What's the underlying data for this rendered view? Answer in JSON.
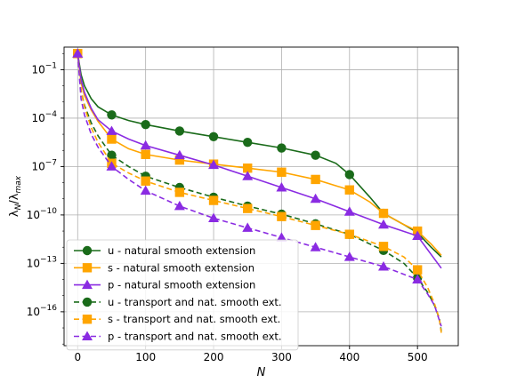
{
  "chart_data": {
    "type": "line",
    "xlabel": "N",
    "ylabel": "λN/λmax",
    "xlim": [
      -20,
      560
    ],
    "ylim_log10": [
      -18.1,
      0.4
    ],
    "yscale": "log",
    "grid": true,
    "legend_position": "lower-left",
    "x_ticks": [
      0,
      100,
      200,
      300,
      400,
      500
    ],
    "y_ticks": [
      {
        "exp": -1,
        "label": "10",
        "sup": "−1"
      },
      {
        "exp": -4,
        "label": "10",
        "sup": "−4"
      },
      {
        "exp": -7,
        "label": "10",
        "sup": "−7"
      },
      {
        "exp": -10,
        "label": "10",
        "sup": "−10"
      },
      {
        "exp": -13,
        "label": "10",
        "sup": "−13"
      },
      {
        "exp": -16,
        "label": "10",
        "sup": "−16"
      }
    ],
    "series": [
      {
        "name": "u - natural smooth extension",
        "color": "#1a6b1a",
        "marker": "circle",
        "dash": "solid",
        "x": [
          0,
          5,
          10,
          20,
          30,
          50,
          75,
          100,
          150,
          200,
          250,
          300,
          350,
          380,
          400,
          430,
          450,
          480,
          500,
          520,
          535
        ],
        "log10y": [
          0,
          -1.3,
          -2.0,
          -2.8,
          -3.3,
          -3.8,
          -4.15,
          -4.4,
          -4.8,
          -5.15,
          -5.5,
          -5.85,
          -6.3,
          -6.8,
          -7.5,
          -8.9,
          -9.9,
          -10.6,
          -11.1,
          -12.0,
          -12.6
        ],
        "marker_x": [
          0,
          50,
          100,
          150,
          200,
          250,
          300,
          350,
          400,
          450,
          500
        ]
      },
      {
        "name": "s - natural smooth extension",
        "color": "#ffa500",
        "marker": "square",
        "dash": "solid",
        "x": [
          0,
          5,
          10,
          20,
          30,
          50,
          75,
          100,
          150,
          200,
          250,
          300,
          350,
          400,
          430,
          450,
          480,
          500,
          520,
          535
        ],
        "log10y": [
          0,
          -1.8,
          -2.6,
          -3.5,
          -4.2,
          -5.3,
          -5.9,
          -6.25,
          -6.6,
          -6.85,
          -7.1,
          -7.35,
          -7.8,
          -8.45,
          -9.2,
          -9.9,
          -10.6,
          -11.0,
          -11.8,
          -12.5
        ],
        "marker_x": [
          0,
          50,
          100,
          150,
          200,
          250,
          300,
          350,
          400,
          450,
          500
        ]
      },
      {
        "name": "p - natural smooth extension",
        "color": "#8a2be2",
        "marker": "triangle",
        "dash": "solid",
        "x": [
          0,
          5,
          10,
          20,
          30,
          50,
          75,
          100,
          150,
          200,
          250,
          300,
          350,
          400,
          450,
          500,
          535
        ],
        "log10y": [
          0,
          -1.6,
          -2.4,
          -3.4,
          -4.1,
          -4.8,
          -5.3,
          -5.7,
          -6.3,
          -6.9,
          -7.6,
          -8.3,
          -9.0,
          -9.8,
          -10.6,
          -11.3,
          -13.3
        ],
        "marker_x": [
          0,
          50,
          100,
          150,
          200,
          250,
          300,
          350,
          400,
          450,
          500
        ]
      },
      {
        "name": "u - transport and nat. smooth ext.",
        "color": "#1a6b1a",
        "marker": "circle",
        "dash": "dashed",
        "x": [
          0,
          5,
          10,
          20,
          30,
          50,
          75,
          100,
          150,
          200,
          250,
          300,
          350,
          400,
          450,
          480,
          500,
          515,
          525,
          532,
          535
        ],
        "log10y": [
          0,
          -2.3,
          -3.2,
          -4.3,
          -5.1,
          -6.3,
          -7.0,
          -7.6,
          -8.3,
          -8.9,
          -9.45,
          -9.95,
          -10.55,
          -11.2,
          -12.2,
          -13.0,
          -13.9,
          -14.8,
          -15.6,
          -16.4,
          -17.2
        ],
        "marker_x": [
          0,
          50,
          100,
          150,
          200,
          250,
          300,
          350,
          400,
          450,
          500
        ]
      },
      {
        "name": "s - transport and nat. smooth ext.",
        "color": "#ffa500",
        "marker": "square",
        "dash": "dashed",
        "x": [
          0,
          5,
          10,
          20,
          30,
          50,
          75,
          100,
          150,
          200,
          250,
          300,
          350,
          400,
          450,
          480,
          500,
          515,
          525,
          532,
          535
        ],
        "log10y": [
          0,
          -2.3,
          -3.3,
          -4.6,
          -5.5,
          -6.8,
          -7.4,
          -7.9,
          -8.6,
          -9.1,
          -9.6,
          -10.1,
          -10.65,
          -11.2,
          -11.95,
          -12.6,
          -13.4,
          -14.5,
          -15.5,
          -16.4,
          -17.3
        ],
        "marker_x": [
          0,
          50,
          100,
          150,
          200,
          250,
          300,
          350,
          400,
          450,
          500
        ]
      },
      {
        "name": "p - transport and nat. smooth ext.",
        "color": "#8a2be2",
        "marker": "triangle",
        "dash": "dashed",
        "x": [
          0,
          5,
          10,
          20,
          30,
          50,
          75,
          100,
          150,
          200,
          250,
          300,
          350,
          400,
          450,
          500,
          515,
          525,
          535
        ],
        "log10y": [
          0,
          -2.8,
          -3.8,
          -5.0,
          -5.8,
          -7.0,
          -7.8,
          -8.5,
          -9.45,
          -10.2,
          -10.8,
          -11.4,
          -12.0,
          -12.6,
          -13.2,
          -14.0,
          -14.9,
          -15.6,
          -16.9
        ],
        "marker_x": [
          0,
          50,
          100,
          150,
          200,
          250,
          300,
          350,
          400,
          450,
          500
        ]
      }
    ]
  }
}
